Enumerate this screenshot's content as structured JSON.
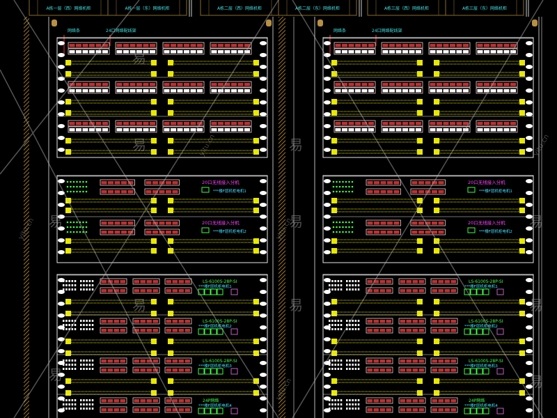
{
  "header": {
    "cabinet_titles": [
      "A栋一层（西）网络机柜",
      "A栋一层（东）网络机柜",
      "A栋二层（西）网络机柜",
      "A栋二层（东）网络机柜",
      "A栋三层（西）网络机柜",
      "A栋三层（东）网络机柜"
    ]
  },
  "racks": [
    {
      "top_labels": {
        "cable_manager": "网络条",
        "patch_panel": "24口网络配线架"
      },
      "wireless_switches": [
        {
          "model": "20口无线接入分机",
          "desc": "***楼F层机柜电机1"
        },
        {
          "model": "20口无线接入分机",
          "desc": "***楼F层机柜电机2"
        }
      ],
      "access_switches": [
        {
          "model": "LS-6100S-28P-SI",
          "desc": "***楼F层机柜电机1"
        },
        {
          "model": "LS-6100S-28P-SI",
          "desc": "***楼F层机柜电机2"
        },
        {
          "model": "LS-6100S-28P-SI",
          "desc": "***楼F层机柜电机3"
        },
        {
          "model": "24P网络",
          "desc": "***楼F层机柜电机4"
        }
      ]
    },
    {
      "top_labels": {
        "cable_manager": "网络条",
        "patch_panel": "24口网络配线架"
      },
      "wireless_switches": [
        {
          "model": "20口无线接入分机",
          "desc": "***楼F层机柜电机1"
        },
        {
          "model": "20口无线接入分机",
          "desc": "***楼F层机柜电机2"
        }
      ],
      "access_switches": [
        {
          "model": "LS-6100S-28P-SI",
          "desc": "***楼F层机柜电机1"
        },
        {
          "model": "LS-6100S-28P-SI",
          "desc": "***楼F层机柜电机2"
        },
        {
          "model": "LS-6100S-28P-SI",
          "desc": "***楼F层机柜电机3"
        },
        {
          "model": "24P网络",
          "desc": "***楼F层机柜电机4"
        }
      ]
    }
  ],
  "watermark": {
    "logo": "易",
    "site": "yitu.cn"
  },
  "colors": {
    "background": "#000000",
    "frame": "#e8e8e8",
    "title_border": "#8a6d2a",
    "title_text": "#40e0e0",
    "cable_manager": "#e8e800",
    "port_red": "#c03030",
    "port_frame": "#f0d0d0",
    "switch_label_magenta": "#ff40ff",
    "switch_label_green": "#40ff40",
    "desc_cyan": "#40e0ff",
    "led_green": "#40ff40"
  }
}
